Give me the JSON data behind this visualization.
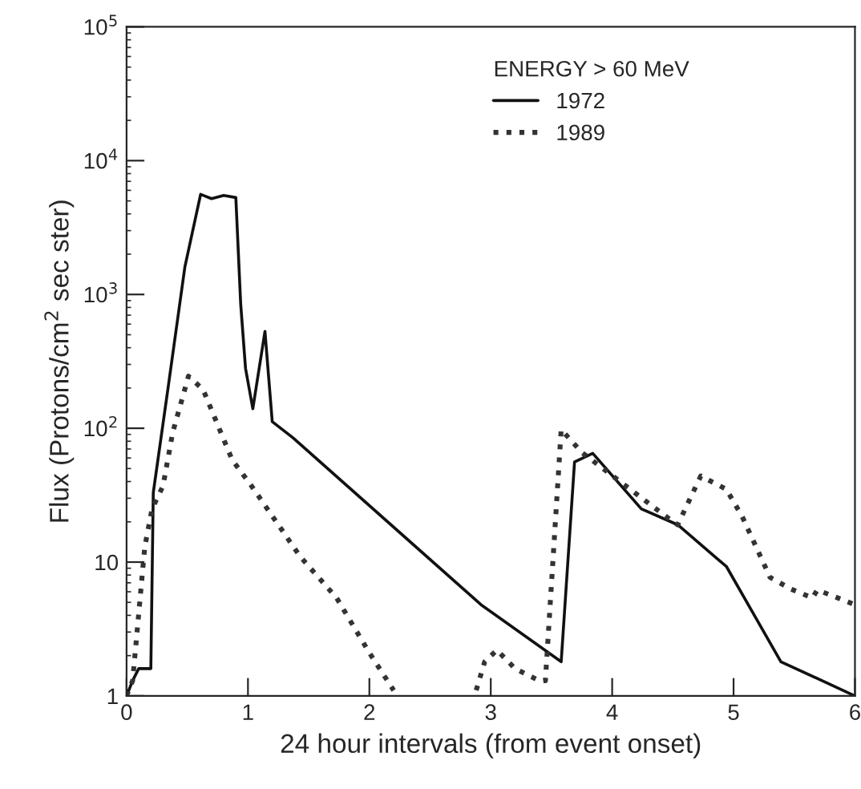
{
  "chart_data": {
    "type": "line",
    "xlabel": "24 hour intervals (from event onset)",
    "ylabel": "Flux (Protons/cm$^{2}$ sec ster)",
    "legend_title": "ENERGY > 60 MeV",
    "log": "y",
    "xlim": [
      0,
      6
    ],
    "ylim": [
      1,
      100000
    ],
    "xticks": [
      0,
      1,
      2,
      3,
      4,
      5,
      6
    ],
    "yticks": [
      1,
      10,
      {
        "value": 100,
        "label": "10$^{2}$"
      },
      {
        "value": 1000,
        "label": "10$^{3}$"
      },
      {
        "value": 10000,
        "label": "10$^{4}$"
      },
      {
        "value": 100000,
        "label": "10$^{5}$"
      }
    ],
    "grid": false,
    "legend": "top right",
    "marker": "none",
    "series": [
      {
        "name": "1972",
        "color": "#111111",
        "line_style": "solid",
        "x": [
          0,
          0.05,
          0.1,
          0.2,
          0.22,
          0.34,
          0.48,
          0.61,
          0.7,
          0.8,
          0.9,
          0.94,
          0.98,
          1.04,
          1.14,
          1.2,
          1.37,
          2.92,
          3.58,
          3.69,
          3.84,
          4.24,
          4.54,
          4.86,
          4.94,
          5.39,
          6.0
        ],
        "values": [
          1,
          1.3,
          1.6,
          1.6,
          33,
          195,
          1600,
          5600,
          5200,
          5500,
          5300,
          850,
          280,
          140,
          530,
          112,
          85,
          4.8,
          1.8,
          56,
          65,
          25,
          19,
          10.7,
          9.3,
          1.8,
          1
        ]
      },
      {
        "name": "1989",
        "color": "#333333",
        "line_style": "dotted",
        "x": [
          0,
          0.05,
          0.15,
          0.21,
          0.3,
          0.38,
          0.51,
          0.63,
          0.87,
          1.03,
          1.43,
          1.73,
          2.0,
          2.2,
          2.5,
          2.88,
          2.95,
          3.05,
          3.2,
          3.4,
          3.45,
          3.58,
          3.75,
          4.47,
          4.54,
          4.73,
          4.94,
          5.07,
          5.3,
          5.47,
          5.65,
          5.69,
          6.0
        ],
        "values": [
          1,
          1.3,
          13,
          25,
          37,
          93,
          245,
          195,
          58,
          37,
          11,
          5.4,
          2.1,
          1.1,
          null,
          1.1,
          1.8,
          2.2,
          1.6,
          1.3,
          1.3,
          98,
          66,
          21,
          19,
          44,
          35,
          22,
          7.7,
          6.3,
          5.4,
          6.2,
          4.8
        ]
      }
    ]
  }
}
